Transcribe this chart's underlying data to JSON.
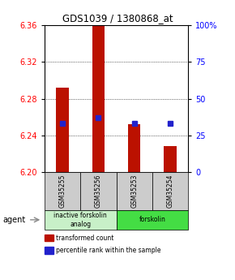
{
  "title": "GDS1039 / 1380868_at",
  "samples": [
    "GSM35255",
    "GSM35256",
    "GSM35253",
    "GSM35254"
  ],
  "red_values": [
    6.292,
    6.36,
    6.252,
    6.228
  ],
  "blue_values_pct": [
    33,
    37,
    33,
    33
  ],
  "ylim": [
    6.2,
    6.36
  ],
  "y_ticks_left": [
    6.2,
    6.24,
    6.28,
    6.32,
    6.36
  ],
  "y_ticks_right": [
    0,
    25,
    50,
    75,
    100
  ],
  "groups": [
    {
      "label": "inactive forskolin\nanalog",
      "samples": [
        0,
        1
      ],
      "color": "#c8f0c8"
    },
    {
      "label": "forskolin",
      "samples": [
        2,
        3
      ],
      "color": "#44dd44"
    }
  ],
  "bar_color": "#bb1100",
  "dot_color": "#2222cc",
  "bar_width": 0.35,
  "agent_label": "agent",
  "legend_items": [
    {
      "color": "#bb1100",
      "label": "transformed count"
    },
    {
      "color": "#2222cc",
      "label": "percentile rank within the sample"
    }
  ],
  "sample_box_color": "#cccccc"
}
